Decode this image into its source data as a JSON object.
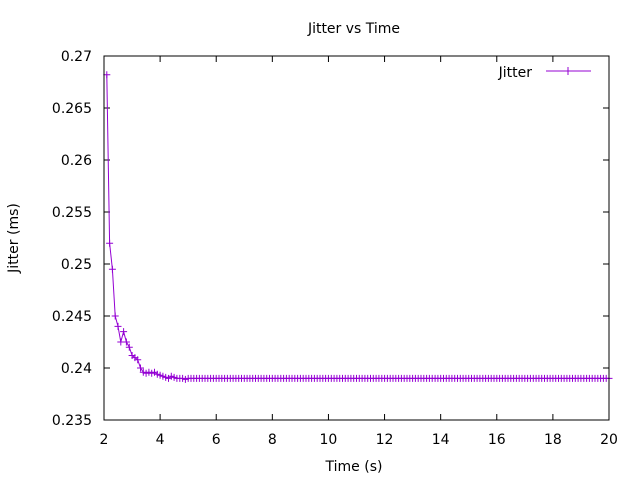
{
  "chart_data": {
    "type": "line",
    "title": "Jitter vs Time",
    "xlabel": "Time (s)",
    "ylabel": "Jitter (ms)",
    "xlim": [
      2,
      20
    ],
    "ylim": [
      0.235,
      0.27
    ],
    "xticks": [
      "2",
      "4",
      "6",
      "8",
      "10",
      "12",
      "14",
      "16",
      "18",
      "20"
    ],
    "yticks": [
      "0.235",
      "0.24",
      "0.245",
      "0.25",
      "0.255",
      "0.26",
      "0.265",
      "0.27"
    ],
    "grid": false,
    "legend_position": "top-right",
    "series": [
      {
        "name": "Jitter",
        "color": "#9400d3",
        "marker": "plus",
        "x": [
          2.1,
          2.2,
          2.3,
          2.4,
          2.5,
          2.6,
          2.7,
          2.8,
          2.9,
          3.0,
          3.1,
          3.2,
          3.3,
          3.4,
          3.5,
          3.6,
          3.7,
          3.8,
          3.9,
          4.0,
          4.1,
          4.2,
          4.3,
          4.4,
          4.5,
          4.6,
          4.7,
          4.8,
          4.9,
          5.0,
          5.1,
          5.2,
          5.3,
          5.4,
          5.5,
          5.6,
          5.7,
          5.8,
          5.9,
          6.0,
          6.1,
          6.2,
          6.3,
          6.4,
          6.5,
          6.6,
          6.7,
          6.8,
          6.9,
          7.0,
          7.1,
          7.2,
          7.3,
          7.4,
          7.5,
          7.6,
          7.7,
          7.8,
          7.9,
          8.0,
          8.1,
          8.2,
          8.3,
          8.4,
          8.5,
          8.6,
          8.7,
          8.8,
          8.9,
          9.0,
          9.1,
          9.2,
          9.3,
          9.4,
          9.5,
          9.6,
          9.7,
          9.8,
          9.9,
          10.0,
          10.1,
          10.2,
          10.3,
          10.4,
          10.5,
          10.6,
          10.7,
          10.8,
          10.9,
          11.0,
          11.1,
          11.2,
          11.3,
          11.4,
          11.5,
          11.6,
          11.7,
          11.8,
          11.9,
          12.0,
          12.1,
          12.2,
          12.3,
          12.4,
          12.5,
          12.6,
          12.7,
          12.8,
          12.9,
          13.0,
          13.1,
          13.2,
          13.3,
          13.4,
          13.5,
          13.6,
          13.7,
          13.8,
          13.9,
          14.0,
          14.1,
          14.2,
          14.3,
          14.4,
          14.5,
          14.6,
          14.7,
          14.8,
          14.9,
          15.0,
          15.1,
          15.2,
          15.3,
          15.4,
          15.5,
          15.6,
          15.7,
          15.8,
          15.9,
          16.0,
          16.1,
          16.2,
          16.3,
          16.4,
          16.5,
          16.6,
          16.7,
          16.8,
          16.9,
          17.0,
          17.1,
          17.2,
          17.3,
          17.4,
          17.5,
          17.6,
          17.7,
          17.8,
          17.9,
          18.0,
          18.1,
          18.2,
          18.3,
          18.4,
          18.5,
          18.6,
          18.7,
          18.8,
          18.9,
          19.0,
          19.1,
          19.2,
          19.3,
          19.4,
          19.5,
          19.6,
          19.7,
          19.8,
          19.9,
          20.0
        ],
        "y": [
          0.2682,
          0.252,
          0.2495,
          0.245,
          0.244,
          0.2425,
          0.2435,
          0.2425,
          0.242,
          0.2412,
          0.241,
          0.2408,
          0.24,
          0.2396,
          0.2395,
          0.2396,
          0.2395,
          0.2396,
          0.2394,
          0.2393,
          0.2392,
          0.2391,
          0.239,
          0.2392,
          0.2391,
          0.239,
          0.239,
          0.239,
          0.2389,
          0.239,
          0.239,
          0.239,
          0.239,
          0.239,
          0.239,
          0.239,
          0.239,
          0.239,
          0.239,
          0.239,
          0.239,
          0.239,
          0.239,
          0.239,
          0.239,
          0.239,
          0.239,
          0.239,
          0.239,
          0.239,
          0.239,
          0.239,
          0.239,
          0.239,
          0.239,
          0.239,
          0.239,
          0.239,
          0.239,
          0.239,
          0.239,
          0.239,
          0.239,
          0.239,
          0.239,
          0.239,
          0.239,
          0.239,
          0.239,
          0.239,
          0.239,
          0.239,
          0.239,
          0.239,
          0.239,
          0.239,
          0.239,
          0.239,
          0.239,
          0.239,
          0.239,
          0.239,
          0.239,
          0.239,
          0.239,
          0.239,
          0.239,
          0.239,
          0.239,
          0.239,
          0.239,
          0.239,
          0.239,
          0.239,
          0.239,
          0.239,
          0.239,
          0.239,
          0.239,
          0.239,
          0.239,
          0.239,
          0.239,
          0.239,
          0.239,
          0.239,
          0.239,
          0.239,
          0.239,
          0.239,
          0.239,
          0.239,
          0.239,
          0.239,
          0.239,
          0.239,
          0.239,
          0.239,
          0.239,
          0.239,
          0.239,
          0.239,
          0.239,
          0.239,
          0.239,
          0.239,
          0.239,
          0.239,
          0.239,
          0.239,
          0.239,
          0.239,
          0.239,
          0.239,
          0.239,
          0.239,
          0.239,
          0.239,
          0.239,
          0.239,
          0.239,
          0.239,
          0.239,
          0.239,
          0.239,
          0.239,
          0.239,
          0.239,
          0.239,
          0.239,
          0.239,
          0.239,
          0.239,
          0.239,
          0.239,
          0.239,
          0.239,
          0.239,
          0.239,
          0.239,
          0.239,
          0.239,
          0.239,
          0.239,
          0.239,
          0.239,
          0.239,
          0.239,
          0.239,
          0.239,
          0.239,
          0.239,
          0.239,
          0.239,
          0.239,
          0.239,
          0.239,
          0.239,
          0.239,
          0.239
        ]
      }
    ]
  }
}
